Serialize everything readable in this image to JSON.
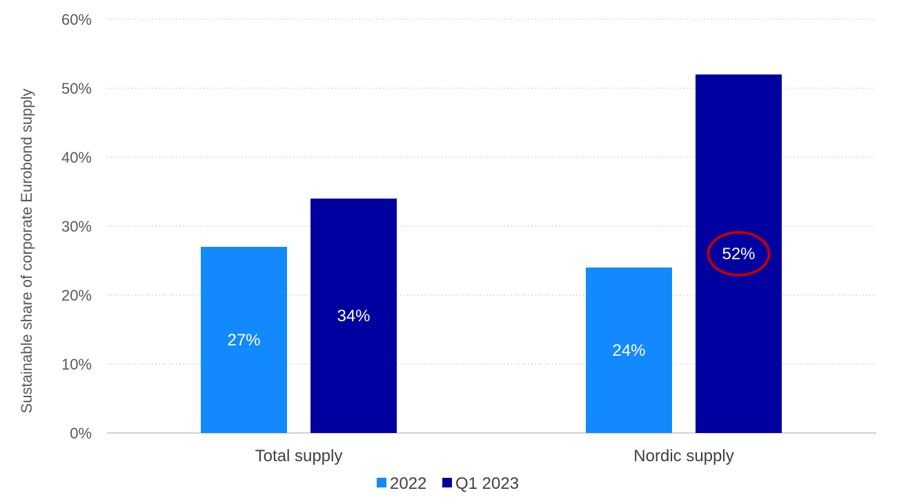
{
  "chart_data": {
    "type": "bar",
    "categories": [
      "Total supply",
      "Nordic supply"
    ],
    "series": [
      {
        "name": "2022",
        "values": [
          27,
          24
        ],
        "color": "#1389FE",
        "labels": [
          "27%",
          "24%"
        ]
      },
      {
        "name": "Q1 2023",
        "values": [
          34,
          52
        ],
        "color": "#0000A0",
        "labels": [
          "34%",
          "52%"
        ]
      }
    ],
    "title": "",
    "xlabel": "",
    "ylabel": "Sustainable share of corporate Eurobond supply",
    "ylim": [
      0,
      60
    ],
    "yticks": [
      0,
      10,
      20,
      30,
      40,
      50,
      60
    ],
    "ytick_labels": [
      "0%",
      "10%",
      "20%",
      "30%",
      "40%",
      "50%",
      "60%"
    ],
    "grid": true,
    "legend": {
      "position": "bottom",
      "entries": [
        "2022",
        "Q1 2023"
      ]
    },
    "annotation": {
      "type": "highlight-ellipse",
      "target": "Nordic supply / Q1 2023 label",
      "color": "#C00000"
    }
  }
}
